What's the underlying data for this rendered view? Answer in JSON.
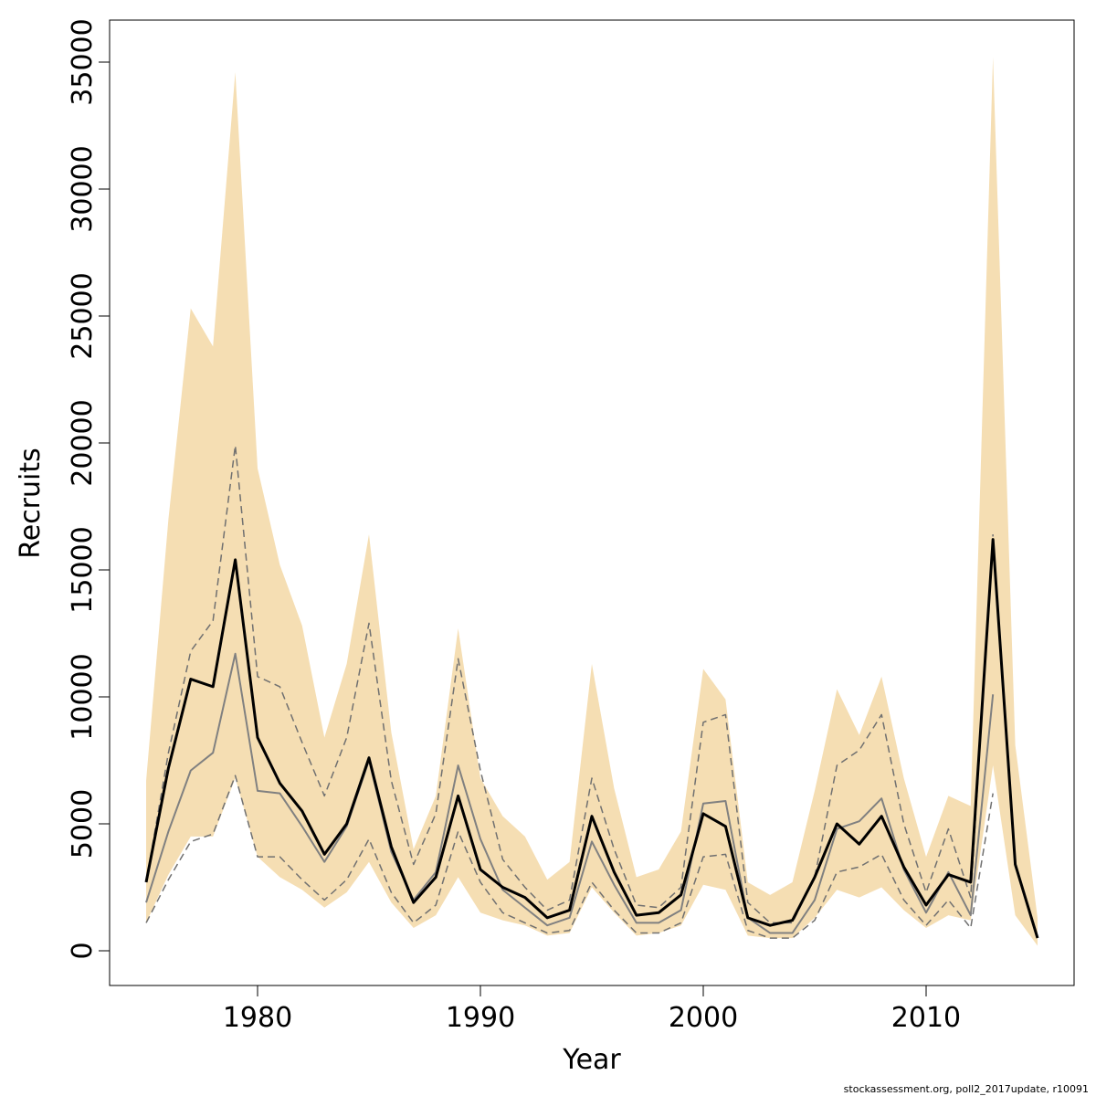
{
  "chart_data": {
    "type": "line",
    "xlabel": "Year",
    "ylabel": "Recruits",
    "footer": "stockassessment.org, poll2_2017update, r10091",
    "x": [
      1975,
      1976,
      1977,
      1978,
      1979,
      1980,
      1981,
      1982,
      1983,
      1984,
      1985,
      1986,
      1987,
      1988,
      1989,
      1990,
      1991,
      1992,
      1993,
      1994,
      1995,
      1996,
      1997,
      1998,
      1999,
      2000,
      2001,
      2002,
      2003,
      2004,
      2005,
      2006,
      2007,
      2008,
      2009,
      2010,
      2011,
      2012,
      2013,
      2014,
      2015
    ],
    "band": {
      "color": "#f5deb3",
      "upper": [
        6700,
        17000,
        25300,
        23800,
        34600,
        19000,
        15200,
        12800,
        8400,
        11300,
        16400,
        8600,
        4000,
        6100,
        12700,
        6800,
        5300,
        4500,
        2800,
        3500,
        11300,
        6400,
        2900,
        3200,
        4700,
        11100,
        9900,
        2700,
        2200,
        2700,
        6300,
        10300,
        8500,
        10800,
        6800,
        3700,
        6100,
        5700,
        35200,
        8100,
        1300
      ],
      "lower": [
        1100,
        3000,
        4500,
        4500,
        6800,
        3700,
        2900,
        2400,
        1700,
        2300,
        3500,
        1900,
        900,
        1400,
        2900,
        1500,
        1200,
        1000,
        600,
        700,
        2500,
        1500,
        600,
        700,
        1000,
        2600,
        2400,
        600,
        500,
        500,
        1300,
        2400,
        2100,
        2500,
        1600,
        900,
        1400,
        1200,
        7300,
        1400,
        200
      ]
    },
    "series": [
      {
        "color": "#808080",
        "linestyle": "solid",
        "linewidth": 2,
        "values": [
          1900,
          4700,
          7100,
          7800,
          11700,
          6300,
          6200,
          4900,
          3500,
          4900,
          7500,
          3900,
          2000,
          3100,
          7300,
          4400,
          2400,
          1700,
          1000,
          1300,
          4300,
          2600,
          1100,
          1100,
          1600,
          5800,
          5900,
          1300,
          700,
          700,
          2000,
          4800,
          5100,
          6000,
          3200,
          1500,
          3100,
          1400,
          10100,
          null,
          null
        ]
      },
      {
        "color": "#707070",
        "linestyle": "dashed",
        "linewidth": 1.5,
        "values": [
          2700,
          7800,
          11800,
          13000,
          19900,
          10800,
          10400,
          8200,
          6100,
          8400,
          12900,
          6700,
          3400,
          5400,
          11500,
          7100,
          3600,
          2500,
          1600,
          2000,
          6800,
          4000,
          1800,
          1700,
          2500,
          9000,
          9300,
          1900,
          1100,
          1100,
          2900,
          7300,
          7900,
          9300,
          5000,
          2300,
          4800,
          2100,
          16400,
          null,
          null
        ]
      },
      {
        "color": "#707070",
        "linestyle": "dashed",
        "linewidth": 1.5,
        "values": [
          1100,
          2800,
          4300,
          4600,
          6900,
          3700,
          3700,
          2800,
          2000,
          2800,
          4400,
          2300,
          1100,
          1800,
          4700,
          2700,
          1500,
          1100,
          700,
          800,
          2700,
          1600,
          700,
          700,
          1100,
          3700,
          3800,
          800,
          500,
          500,
          1200,
          3100,
          3300,
          3800,
          2000,
          1000,
          2000,
          900,
          6200,
          null,
          null
        ]
      },
      {
        "color": "#000000",
        "linestyle": "solid",
        "linewidth": 3,
        "values": [
          2700,
          7200,
          10700,
          10400,
          15400,
          8400,
          6600,
          5500,
          3800,
          5000,
          7600,
          4100,
          1900,
          2900,
          6100,
          3200,
          2500,
          2100,
          1300,
          1600,
          5300,
          3100,
          1400,
          1500,
          2200,
          5400,
          4900,
          1300,
          1000,
          1200,
          2900,
          5000,
          4200,
          5300,
          3300,
          1800,
          3000,
          2700,
          16200,
          3400,
          500
        ]
      }
    ],
    "xlim": [
      1973.36,
      2016.64
    ],
    "ylim": [
      -1367,
      36655
    ],
    "xticks": [
      1980,
      1990,
      2000,
      2010
    ],
    "yticks": [
      0,
      5000,
      10000,
      15000,
      20000,
      25000,
      30000,
      35000
    ],
    "grid": false
  }
}
